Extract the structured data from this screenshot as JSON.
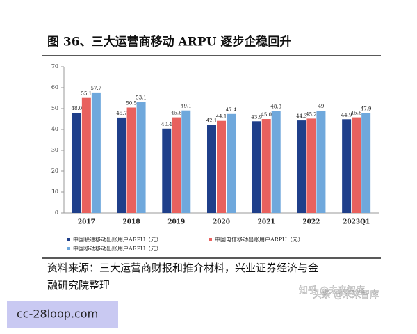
{
  "chart_data": {
    "type": "bar",
    "title": "图 36、三大运营商移动 ARPU 逐步企稳回升",
    "categories": [
      "2017",
      "2018",
      "2019",
      "2020",
      "2021",
      "2022",
      "2023Q1"
    ],
    "series": [
      {
        "name": "中国联通移动出账用户ARPU（元）",
        "color": "#1f3f8a",
        "values": [
          48.0,
          45.7,
          40.4,
          42.1,
          43.9,
          44.3,
          44.9
        ],
        "value_labels": [
          "48.0",
          "45.7",
          "40.4",
          "42.1",
          "43.9",
          "44.3",
          "44.9"
        ]
      },
      {
        "name": "中国电信移动出账用户ARPU（元）",
        "color": "#e8615e",
        "values": [
          55.1,
          50.5,
          45.8,
          44.1,
          45.0,
          45.2,
          45.8
        ],
        "value_labels": [
          "55.1",
          "50.5",
          "45.8",
          "44.1",
          "45.0",
          "45.2",
          "45.8"
        ]
      },
      {
        "name": "中国移动移动出账用户ARPU（元）",
        "color": "#6fa8dc",
        "values": [
          57.7,
          53.1,
          49.1,
          47.4,
          48.8,
          49,
          47.9
        ]
      }
    ],
    "ylim": [
      0,
      70
    ],
    "yticks": [
      0,
      10,
      20,
      30,
      40,
      50,
      60,
      70
    ],
    "grid": false
  },
  "source": [
    "资料来源：三大运营商财报和推介材料，兴业证券经济与金",
    "融研究院整理"
  ],
  "watermark": [
    "知乎 @未来智库",
    "头条 @未来智库"
  ],
  "overlay": "cc-28loop.com"
}
